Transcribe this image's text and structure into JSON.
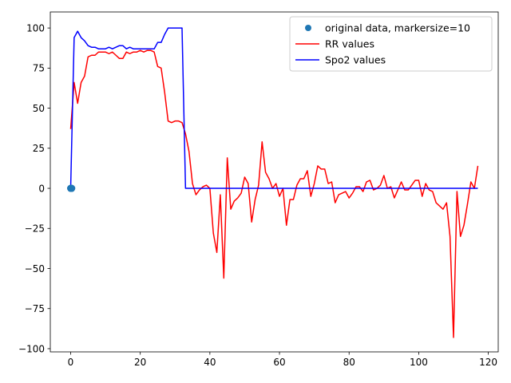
{
  "chart_data": {
    "type": "line",
    "title": "",
    "xlabel": "",
    "ylabel": "",
    "xlim": [
      -5.85,
      122.85
    ],
    "ylim": [
      -102,
      110
    ],
    "xticks": [
      0,
      20,
      40,
      60,
      80,
      100,
      120
    ],
    "yticks": [
      -100,
      -75,
      -50,
      -25,
      0,
      25,
      50,
      75,
      100
    ],
    "xtick_labels": [
      "0",
      "20",
      "40",
      "60",
      "80",
      "100",
      "120"
    ],
    "ytick_labels": [
      "−100",
      "−75",
      "−50",
      "−25",
      "0",
      "25",
      "50",
      "75",
      "100"
    ],
    "grid": false,
    "legend_position": "top-right",
    "series": [
      {
        "name": "original data, markersize=10",
        "style": "markers",
        "color": "#1f77b4",
        "x": [
          0,
          0.1,
          0.2,
          0.3
        ],
        "y": [
          0,
          0,
          0,
          0
        ]
      },
      {
        "name": "RR values",
        "style": "line",
        "color": "#ff0000",
        "x": [
          0,
          1,
          2,
          3,
          4,
          5,
          6,
          7,
          8,
          9,
          10,
          11,
          12,
          13,
          14,
          15,
          16,
          17,
          18,
          19,
          20,
          21,
          22,
          23,
          24,
          25,
          26,
          27,
          28,
          29,
          30,
          31,
          32,
          33,
          34,
          35,
          36,
          37,
          38,
          39,
          40,
          41,
          42,
          43,
          44,
          45,
          46,
          47,
          48,
          49,
          50,
          51,
          52,
          53,
          54,
          55,
          56,
          57,
          58,
          59,
          60,
          61,
          62,
          63,
          64,
          65,
          66,
          67,
          68,
          69,
          70,
          71,
          72,
          73,
          74,
          75,
          76,
          77,
          78,
          79,
          80,
          81,
          82,
          83,
          84,
          85,
          86,
          87,
          88,
          89,
          90,
          91,
          92,
          93,
          94,
          95,
          96,
          97,
          98,
          99,
          100,
          101,
          102,
          103,
          104,
          105,
          106,
          107,
          108,
          109,
          110,
          111,
          112,
          113,
          114,
          115,
          116,
          117
        ],
        "y": [
          37,
          66,
          53,
          66,
          70,
          82,
          83,
          83,
          85,
          85,
          85,
          84,
          85,
          83,
          81,
          81,
          85,
          84,
          85,
          85,
          86,
          85,
          86,
          86,
          85,
          76,
          75,
          60,
          42,
          41,
          42,
          42,
          41,
          34,
          23,
          3,
          -4,
          -1,
          1,
          2,
          0,
          -28,
          -40,
          -4,
          -56,
          19,
          -13,
          -8,
          -6,
          -3,
          7,
          3,
          -21,
          -7,
          2,
          29,
          10,
          6,
          0,
          3,
          -5,
          0,
          -23,
          -7,
          -7,
          2,
          6,
          6,
          11,
          -5,
          3,
          14,
          12,
          12,
          3,
          4,
          -9,
          -4,
          -3,
          -2,
          -6,
          -3,
          1,
          1,
          -2,
          4,
          5,
          -1,
          0,
          2,
          8,
          0,
          1,
          -6,
          -1,
          4,
          -1,
          -1,
          2,
          5,
          5,
          -5,
          3,
          -1,
          -2,
          -9,
          -11,
          -13,
          -9,
          -30,
          -93,
          -2,
          -30,
          -23,
          -10,
          4,
          0,
          14
        ]
      },
      {
        "name": "Spo2 values",
        "style": "line",
        "color": "#0000ff",
        "x": [
          0,
          1,
          2,
          3,
          4,
          5,
          6,
          7,
          8,
          9,
          10,
          11,
          12,
          13,
          14,
          15,
          16,
          17,
          18,
          19,
          20,
          21,
          22,
          23,
          24,
          25,
          26,
          27,
          28,
          29,
          30,
          31,
          32,
          33,
          34,
          35,
          36,
          37,
          38,
          39,
          40,
          41,
          42,
          43,
          44,
          45,
          46,
          47,
          48,
          49,
          50,
          51,
          52,
          53,
          54,
          55,
          56,
          57,
          58,
          59,
          60,
          61,
          62,
          63,
          64,
          65,
          66,
          67,
          68,
          69,
          70,
          71,
          72,
          73,
          74,
          75,
          76,
          77,
          78,
          79,
          80,
          81,
          82,
          83,
          84,
          85,
          86,
          87,
          88,
          89,
          90,
          91,
          92,
          93,
          94,
          95,
          96,
          97,
          98,
          99,
          100,
          101,
          102,
          103,
          104,
          105,
          106,
          107,
          108,
          109,
          110,
          111,
          112,
          113,
          114,
          115,
          116,
          117
        ],
        "y": [
          0,
          94,
          98,
          94,
          92,
          89,
          88,
          88,
          87,
          87,
          87,
          88,
          87,
          88,
          89,
          89,
          87,
          88,
          87,
          87,
          87,
          87,
          87,
          87,
          87,
          91,
          91,
          96,
          100,
          100,
          100,
          100,
          100,
          0,
          0,
          0,
          0,
          0,
          0,
          0,
          0,
          0,
          0,
          0,
          0,
          0,
          0,
          0,
          0,
          0,
          0,
          0,
          0,
          0,
          0,
          0,
          0,
          0,
          0,
          0,
          0,
          0,
          0,
          0,
          0,
          0,
          0,
          0,
          0,
          0,
          0,
          0,
          0,
          0,
          0,
          0,
          0,
          0,
          0,
          0,
          0,
          0,
          0,
          0,
          0,
          0,
          0,
          0,
          0,
          0,
          0,
          0,
          0,
          0,
          0,
          0,
          0,
          0,
          0,
          0,
          0,
          0,
          0,
          0,
          0,
          0,
          0,
          0,
          0,
          0,
          0,
          0,
          0,
          0,
          0,
          0,
          0,
          0
        ]
      }
    ]
  }
}
